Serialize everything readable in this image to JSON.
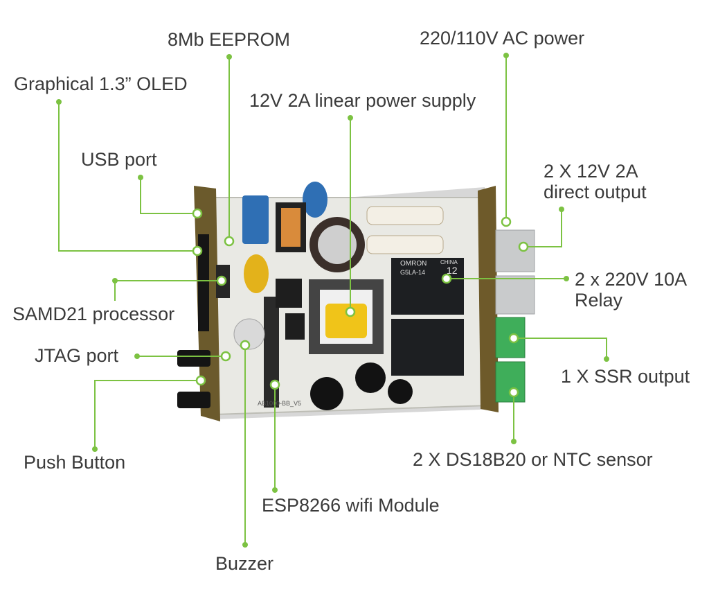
{
  "palette": {
    "leader": "#7cc242",
    "label_text": "#3a3a3a",
    "pcb": "#e9e9e4",
    "terminal_green": "#3fae5a",
    "terminal_grey": "#c9cbcc",
    "relay_black": "#1d1f22",
    "transformer_yellow": "#f0c419"
  },
  "board": {
    "relay_brand": "OMRON",
    "relay_model": "G5LA-14",
    "relay_voltage": "12",
    "relay_region": "CHINA",
    "pcb_marking": "AB1000-BB_V5"
  },
  "callouts": {
    "eeprom": "8Mb EEPROM",
    "oled": "Graphical 1.3” OLED",
    "usb": "USB port",
    "psu": "12V 2A linear power supply",
    "ac_power": "220/110V AC power",
    "direct_output_line1": "2 X 12V 2A",
    "direct_output_line2": "direct output",
    "relay_line1": "2 x 220V 10A",
    "relay_line2": "Relay",
    "samd21": "SAMD21 processor",
    "jtag": "JTAG port",
    "ssr": "1 X SSR output",
    "push_button": "Push Button",
    "sensor": "2 X DS18B20 or NTC sensor",
    "esp8266": "ESP8266 wifi Module",
    "buzzer": "Buzzer"
  }
}
